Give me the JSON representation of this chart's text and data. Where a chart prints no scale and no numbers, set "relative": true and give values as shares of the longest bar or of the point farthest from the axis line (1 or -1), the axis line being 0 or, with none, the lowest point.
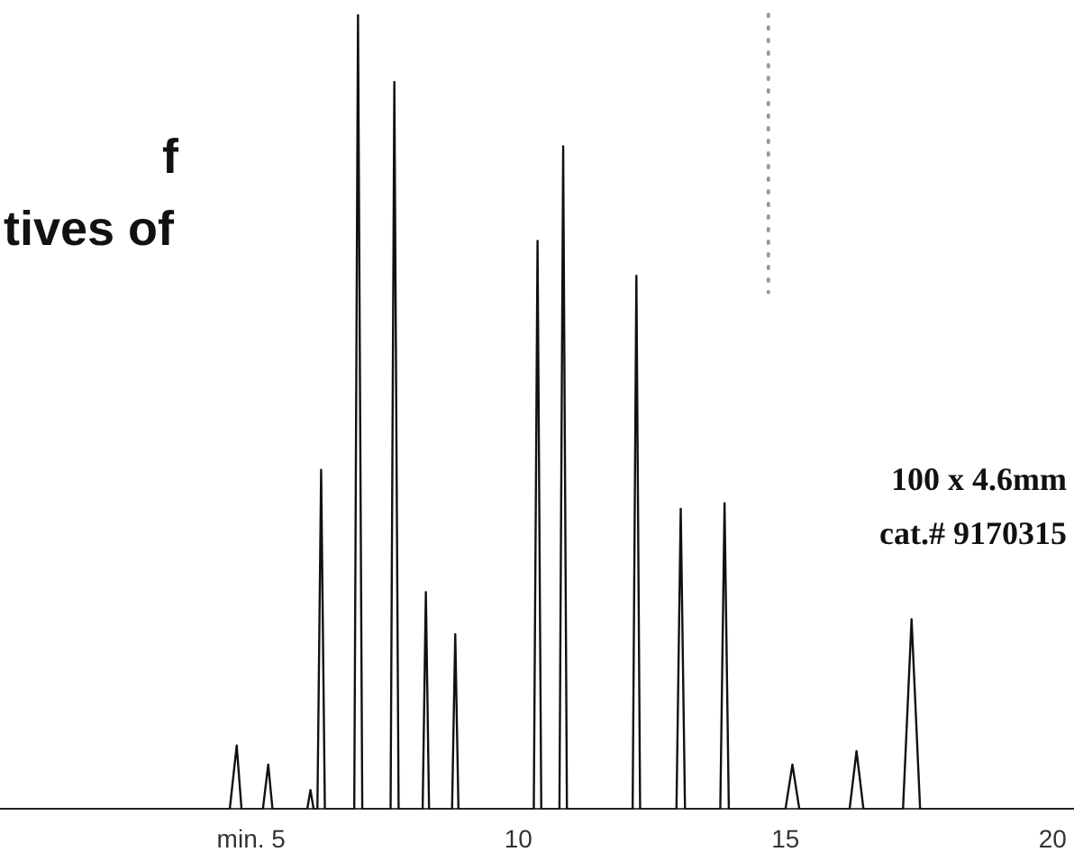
{
  "chart_data": {
    "type": "line",
    "relative": true,
    "x": [
      0.3,
      4.6,
      4.73,
      4.82,
      5.22,
      5.32,
      5.4,
      6.05,
      6.11,
      6.17,
      6.24,
      6.31,
      6.38,
      6.93,
      7.0,
      7.08,
      7.61,
      7.68,
      7.76,
      8.21,
      8.27,
      8.33,
      8.76,
      8.82,
      8.88,
      10.29,
      10.36,
      10.43,
      10.77,
      10.84,
      10.91,
      12.14,
      12.21,
      12.28,
      12.96,
      13.04,
      13.12,
      13.78,
      13.86,
      13.94,
      15.0,
      15.13,
      15.26,
      16.2,
      16.33,
      16.46,
      17.2,
      17.36,
      17.52,
      20.4
    ],
    "series": [
      {
        "color": "#111111",
        "values": [
          0,
          0,
          0.08,
          0,
          0,
          0.056,
          0,
          0,
          0.024,
          0,
          0,
          0.427,
          0,
          0,
          1,
          0,
          0,
          0.915,
          0,
          0,
          0.273,
          0,
          0,
          0.22,
          0,
          0,
          0.715,
          0,
          0,
          0.834,
          0,
          0,
          0.671,
          0,
          0,
          0.378,
          0,
          0,
          0.385,
          0,
          0,
          0.056,
          0,
          0,
          0.073,
          0,
          0,
          0.239,
          0,
          0
        ]
      }
    ],
    "xlim": [
      0.3,
      20.4
    ],
    "xticks": [
      {
        "value": 5,
        "label": "min. 5"
      },
      10,
      15,
      20
    ],
    "grid": false,
    "legend": false,
    "marker": "none",
    "line_style": "solid",
    "ref_lines": [
      {
        "axis": "x",
        "value": 14.68,
        "line_style": "dotted",
        "color": "#999999"
      }
    ],
    "annotations": [
      "f",
      "tives of",
      "100 x 4.6mm",
      "cat.# 9170315"
    ]
  }
}
